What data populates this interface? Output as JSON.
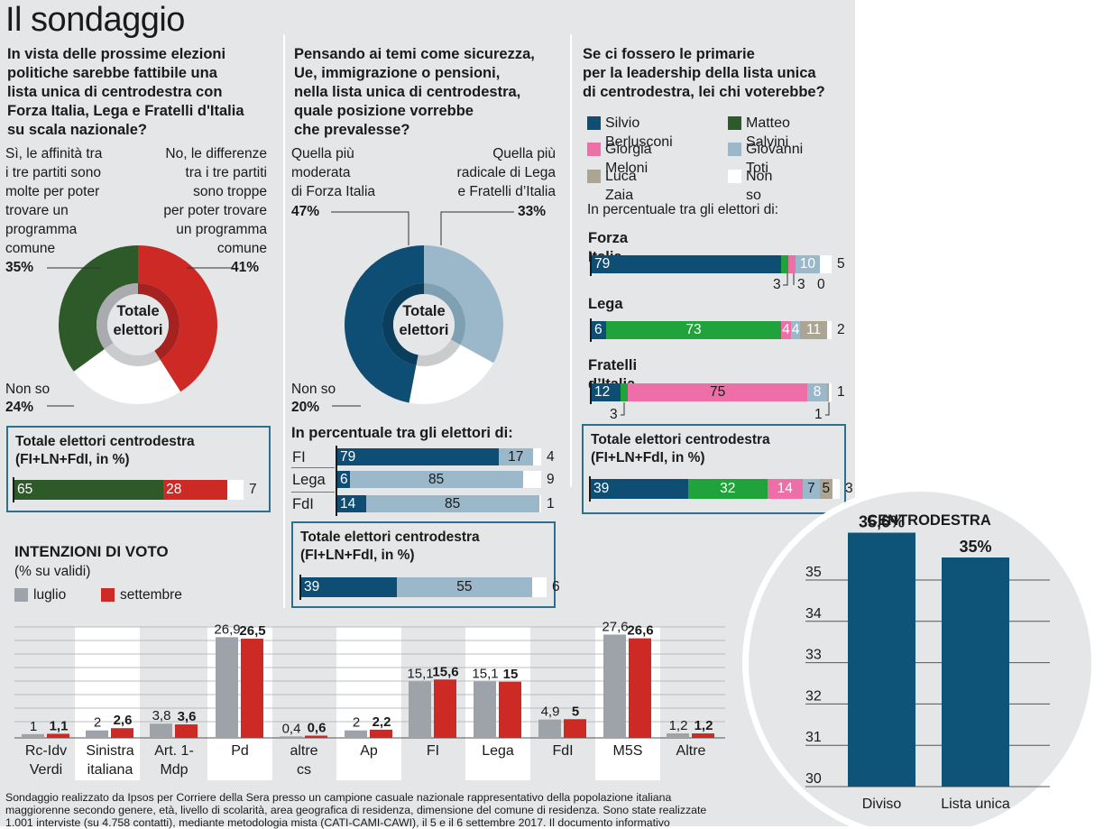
{
  "header": {
    "title": "Il sondaggio"
  },
  "colors": {
    "green": "#2e5a2a",
    "red": "#cd2a26",
    "white": "#ffffff",
    "grey": "#b8babd",
    "darkblue": "#0e4e74",
    "lightblue": "#9bb8cb",
    "brightgreen": "#21a33c",
    "pink": "#ee6fa8",
    "beige": "#aca594",
    "bargrey": "#9da3a8",
    "barred": "#cd2a26",
    "centroblue": "#0e5478"
  },
  "q1": {
    "question": [
      "In vista delle prossime elezioni",
      "politiche sarebbe fattibile una",
      "lista unica di centrodestra con",
      "Forza Italia, Lega e Fratelli d'Italia",
      "su scala nazionale?"
    ],
    "yes_label": [
      "Sì, le affinità tra",
      "i tre partiti sono",
      "molte per poter",
      "trovare un",
      "programma",
      "comune"
    ],
    "yes_pct": "35%",
    "no_label": [
      "No, le differenze",
      "tra i tre partiti",
      "sono troppe",
      "per poter trovare",
      "un programma",
      "comune"
    ],
    "no_pct": "41%",
    "nonso_label": "Non so",
    "nonso_pct": "24%",
    "center": [
      "Totale",
      "elettori"
    ],
    "box_title": [
      "Totale elettori centrodestra",
      "(FI+LN+FdI, in %)"
    ],
    "bar": [
      {
        "v": 65,
        "label": "65"
      },
      {
        "v": 28,
        "label": "28"
      },
      {
        "v": 7,
        "label": "7"
      }
    ]
  },
  "q2": {
    "question": [
      "Pensando ai temi come sicurezza,",
      "Ue, immigrazione o pensioni,",
      "nella lista unica di centrodestra,",
      "quale posizione vorrebbe",
      "che prevalesse?"
    ],
    "moderate_label": [
      "Quella più",
      "moderata",
      "di Forza Italia"
    ],
    "moderate_pct": "47%",
    "radical_label": [
      "Quella più",
      "radicale di Lega",
      "e Fratelli d’Italia"
    ],
    "radical_pct": "33%",
    "nonso_label": "Non so",
    "nonso_pct": "20%",
    "center": [
      "Totale",
      "elettori"
    ],
    "sub_title": "In percentuale tra gli elettori di:",
    "rows": [
      {
        "party": "FI",
        "vals": [
          "79",
          "17",
          "4"
        ]
      },
      {
        "party": "Lega",
        "vals": [
          "6",
          "85",
          "9"
        ]
      },
      {
        "party": "FdI",
        "vals": [
          "14",
          "85",
          "1"
        ]
      }
    ],
    "box_title": [
      "Totale elettori centrodestra",
      "(FI+LN+FdI, in %)"
    ],
    "bar": [
      "39",
      "55",
      "6"
    ]
  },
  "q3": {
    "question": [
      "Se ci fossero le primarie",
      "per la leadership della lista unica",
      "di centrodestra, lei chi voterebbe?"
    ],
    "legend": [
      "Silvio Berlusconi",
      "Matteo Salvini",
      "Giorgia Meloni",
      "Giovanni Toti",
      "Luca Zaia",
      "Non so"
    ],
    "sub_title": "In percentuale tra gli elettori di:",
    "groups": [
      {
        "name": "Forza Italia",
        "labels": [
          "79",
          "10",
          "5"
        ],
        "below": [
          "3",
          "3",
          "0"
        ]
      },
      {
        "name": "Lega",
        "labels": [
          "6",
          "73",
          "4",
          "4",
          "11",
          "2"
        ]
      },
      {
        "name": "Fratelli d’Italia",
        "labels": [
          "12",
          "75",
          "8",
          "1"
        ],
        "below": [
          "3",
          "1"
        ]
      }
    ],
    "box_title": [
      "Totale elettori centrodestra",
      "(FI+LN+FdI, in %)"
    ],
    "bar": [
      "39",
      "32",
      "14",
      "7",
      "5",
      "3"
    ]
  },
  "intenzioni": {
    "title": "INTENZIONI DI VOTO",
    "subtitle": "(% su validi)",
    "legend": [
      "luglio",
      "settembre"
    ]
  },
  "centrodestra": {
    "title": "CENTRODESTRA"
  },
  "footer": {
    "lines": [
      "Sondaggio realizzato da Ipsos per Corriere della Sera presso un campione casuale nazionale rappresentativo della popolazione italiana",
      "maggiorenne secondo genere, età, livello di scolarità, area geografica di residenza, dimensione del comune di residenza. Sono state realizzate",
      "1.001 interviste (su 4.758 contatti), mediante metodologia mista (CATI-CAMI-CAWI), il 5 e il 6 settembre 2017. Il documento informativo"
    ]
  },
  "chart_data": [
    {
      "type": "pie",
      "title": "In vista delle prossime elezioni politiche sarebbe fattibile una lista unica di centrodestra con Forza Italia, Lega e Fratelli d'Italia su scala nazionale?",
      "categories": [
        "Sì",
        "No",
        "Non so"
      ],
      "values": [
        35,
        41,
        24
      ]
    },
    {
      "type": "pie",
      "title": "Pensando ai temi come sicurezza, Ue, immigrazione o pensioni, nella lista unica di centrodestra, quale posizione vorrebbe che prevalesse?",
      "categories": [
        "Quella più moderata di Forza Italia",
        "Quella più radicale di Lega e Fratelli d’Italia",
        "Non so"
      ],
      "values": [
        47,
        33,
        20
      ]
    },
    {
      "type": "bar",
      "title": "Totale elettori centrodestra (FI+LN+FdI, in %)",
      "categories": [
        "Sì",
        "No",
        "Non so"
      ],
      "values": [
        65,
        28,
        7
      ]
    },
    {
      "type": "bar",
      "title": "In percentuale tra gli elettori di:",
      "categories": [
        "FI",
        "Lega",
        "FdI",
        "Totale elettori centrodestra"
      ],
      "series": [
        {
          "name": "Quella più moderata di Forza Italia",
          "values": [
            79,
            6,
            14,
            39
          ]
        },
        {
          "name": "Quella più radicale di Lega e Fratelli d’Italia",
          "values": [
            17,
            85,
            85,
            55
          ]
        },
        {
          "name": "Non so",
          "values": [
            4,
            9,
            1,
            6
          ]
        }
      ]
    },
    {
      "type": "bar",
      "title": "In percentuale tra gli elettori di:",
      "categories": [
        "Forza Italia",
        "Lega",
        "Fratelli d’Italia",
        "Totale elettori centrodestra"
      ],
      "series": [
        {
          "name": "Silvio Berlusconi",
          "values": [
            79,
            6,
            12,
            39
          ]
        },
        {
          "name": "Matteo Salvini",
          "values": [
            3,
            73,
            3,
            32
          ]
        },
        {
          "name": "Giorgia Meloni",
          "values": [
            3,
            4,
            75,
            14
          ]
        },
        {
          "name": "Giovanni Toti",
          "values": [
            10,
            4,
            8,
            7
          ]
        },
        {
          "name": "Luca Zaia",
          "values": [
            0,
            11,
            1,
            5
          ]
        },
        {
          "name": "Non so",
          "values": [
            5,
            2,
            1,
            3
          ]
        }
      ]
    },
    {
      "type": "bar",
      "title": "INTENZIONI DI VOTO",
      "subtitle": "(% su validi)",
      "categories": [
        "Rc-Idv Verdi",
        "Sinistra italiana",
        "Art. 1-Mdp",
        "Pd",
        "altre cs",
        "Ap",
        "FI",
        "Lega",
        "FdI",
        "M5S",
        "Altre"
      ],
      "series": [
        {
          "name": "luglio",
          "values": [
            1,
            2,
            3.8,
            26.9,
            0.4,
            2,
            15.1,
            15.1,
            4.9,
            27.6,
            1.2
          ]
        },
        {
          "name": "settembre",
          "values": [
            1.1,
            2.6,
            3.6,
            26.5,
            0.6,
            2.2,
            15.6,
            15,
            5,
            26.6,
            1.2
          ]
        }
      ],
      "value_labels": {
        "luglio": [
          "1",
          "2",
          "3,8",
          "26,9",
          "0,4",
          "2",
          "15,1",
          "15,1",
          "4,9",
          "27,6",
          "1,2"
        ],
        "settembre": [
          "1,1",
          "2,6",
          "3,6",
          "26,5",
          "0,6",
          "2,2",
          "15,6",
          "15",
          "5",
          "26,6",
          "1,2"
        ]
      }
    },
    {
      "type": "bar",
      "title": "CENTRODESTRA",
      "categories": [
        "Diviso",
        "Lista unica"
      ],
      "values": [
        35.6,
        35
      ],
      "value_labels": [
        "35,6%",
        "35%"
      ],
      "ylim": [
        30,
        35
      ],
      "yticks": [
        "30",
        "31",
        "32",
        "33",
        "34",
        "35"
      ]
    }
  ]
}
